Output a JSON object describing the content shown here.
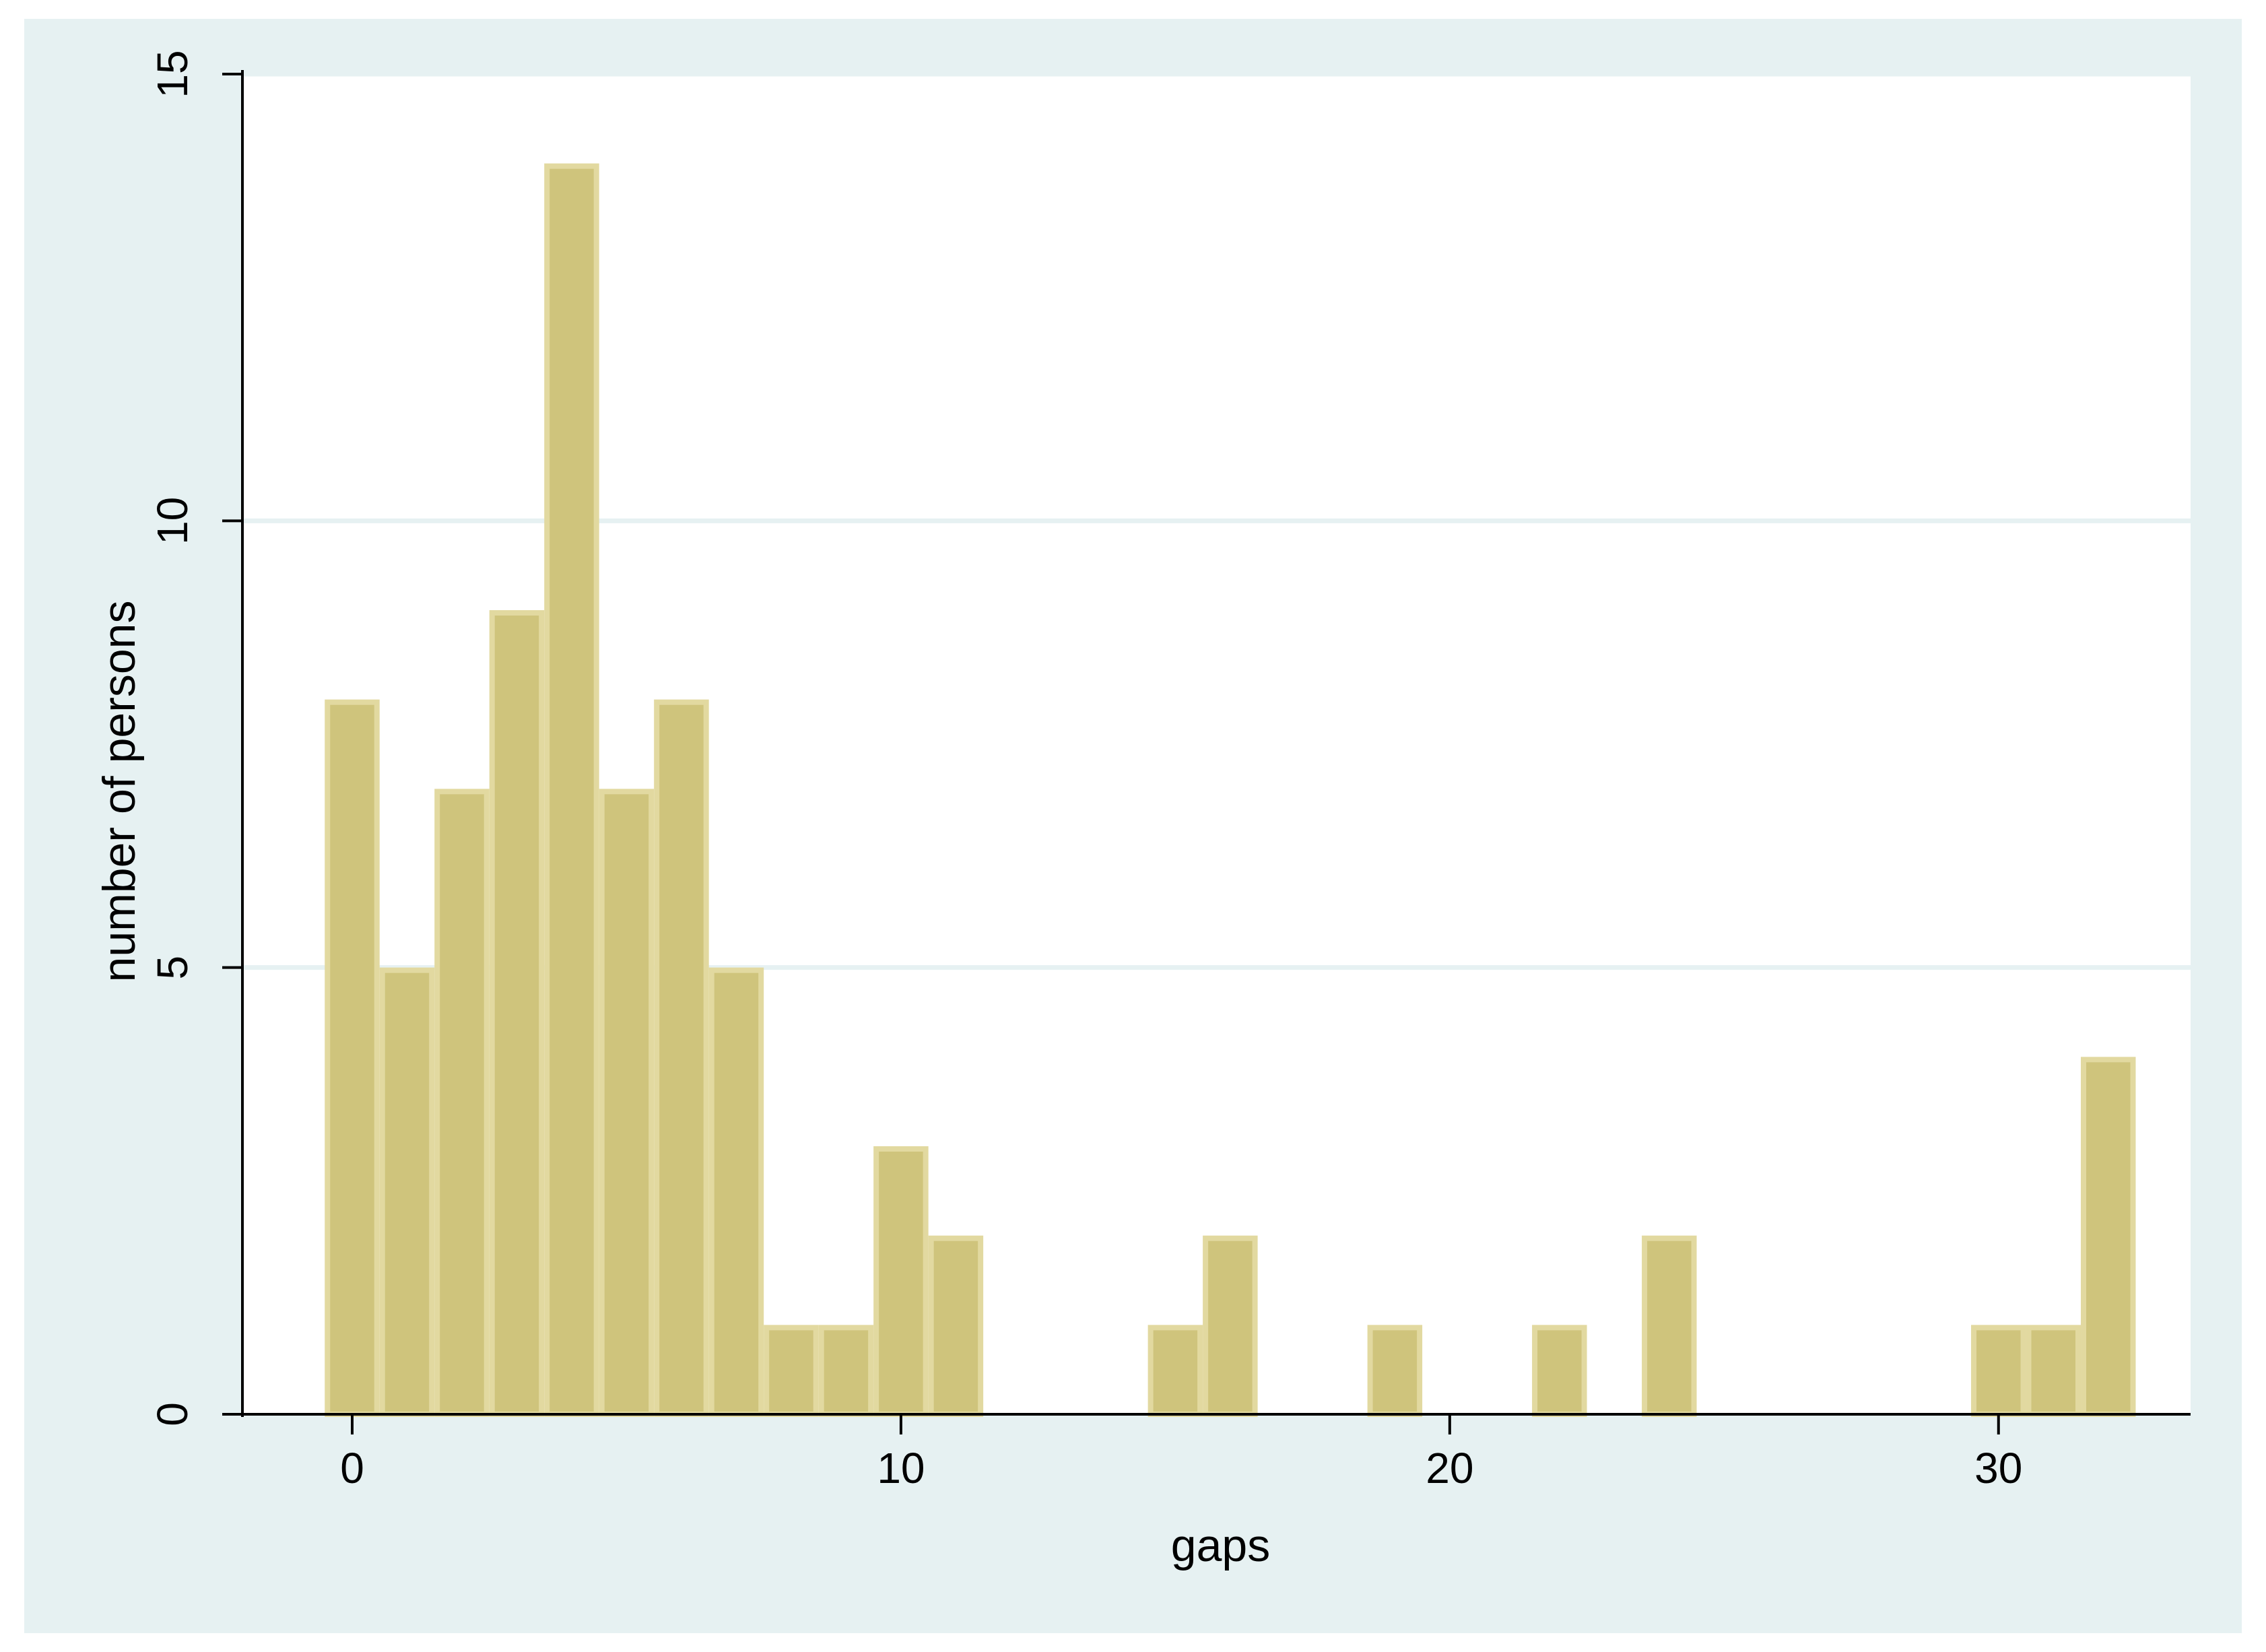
{
  "chart_data": {
    "type": "bar",
    "subtype": "histogram",
    "xlabel": "gaps",
    "ylabel": "number of persons",
    "xlim": [
      -2,
      33.5
    ],
    "ylim": [
      0,
      15
    ],
    "x_ticks": [
      0,
      10,
      20,
      30
    ],
    "y_ticks": [
      0,
      5,
      10,
      15
    ],
    "grid": "horizontal",
    "bin_width": 1,
    "bins": [
      {
        "x": 0,
        "count": 8
      },
      {
        "x": 1,
        "count": 5
      },
      {
        "x": 2,
        "count": 7
      },
      {
        "x": 3,
        "count": 9
      },
      {
        "x": 4,
        "count": 14
      },
      {
        "x": 5,
        "count": 7
      },
      {
        "x": 6,
        "count": 8
      },
      {
        "x": 7,
        "count": 5
      },
      {
        "x": 8,
        "count": 1
      },
      {
        "x": 9,
        "count": 1
      },
      {
        "x": 10,
        "count": 3
      },
      {
        "x": 11,
        "count": 2
      },
      {
        "x": 15,
        "count": 1
      },
      {
        "x": 16,
        "count": 2
      },
      {
        "x": 19,
        "count": 1
      },
      {
        "x": 22,
        "count": 1
      },
      {
        "x": 24,
        "count": 2
      },
      {
        "x": 30,
        "count": 1
      },
      {
        "x": 31,
        "count": 1
      },
      {
        "x": 32,
        "count": 4
      }
    ],
    "colors": {
      "outer_background": "#e6f1f2",
      "plot_background": "#ffffff",
      "bar_fill": "#cfc47c",
      "bar_outline": "#e2d9a0",
      "grid": "#e6f1f2",
      "axis": "#000000"
    }
  }
}
